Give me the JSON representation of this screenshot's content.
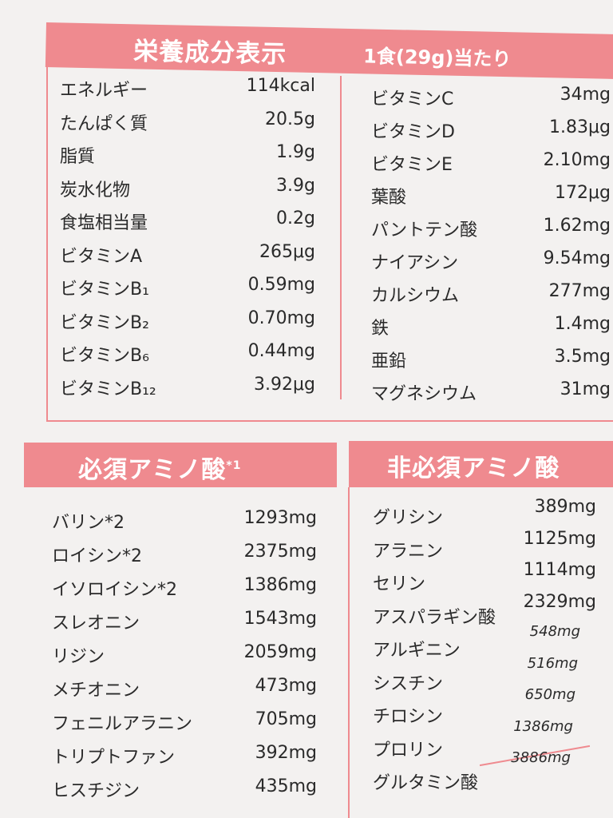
{
  "nutrition": {
    "title": "栄養成分表示",
    "serving": "1食(29g)当たり",
    "left": [
      {
        "label": "エネルギー",
        "value": "114kcal"
      },
      {
        "label": "たんぱく質",
        "value": "20.5g"
      },
      {
        "label": "脂質",
        "value": "1.9g"
      },
      {
        "label": "炭水化物",
        "value": "3.9g"
      },
      {
        "label": "食塩相当量",
        "value": "0.2g"
      },
      {
        "label": "ビタミンA",
        "value": "265μg"
      },
      {
        "label": "ビタミンB₁",
        "value": "0.59mg"
      },
      {
        "label": "ビタミンB₂",
        "value": "0.70mg"
      },
      {
        "label": "ビタミンB₆",
        "value": "0.44mg"
      },
      {
        "label": "ビタミンB₁₂",
        "value": "3.92μg"
      }
    ],
    "right": [
      {
        "label": "ビタミンC",
        "value": "34mg"
      },
      {
        "label": "ビタミンD",
        "value": "1.83μg"
      },
      {
        "label": "ビタミンE",
        "value": "2.10mg"
      },
      {
        "label": "葉酸",
        "value": "172μg"
      },
      {
        "label": "パントテン酸",
        "value": "1.62mg"
      },
      {
        "label": "ナイアシン",
        "value": "9.54mg"
      },
      {
        "label": "カルシウム",
        "value": "277mg"
      },
      {
        "label": "鉄",
        "value": "1.4mg"
      },
      {
        "label": "亜鉛",
        "value": "3.5mg"
      },
      {
        "label": "マグネシウム",
        "value": "31mg"
      }
    ]
  },
  "essential": {
    "title": "必須アミノ酸",
    "footnote_mark": "*1",
    "items": [
      {
        "label": "バリン*2",
        "value": "1293mg"
      },
      {
        "label": "ロイシン*2",
        "value": "2375mg"
      },
      {
        "label": "イソロイシン*2",
        "value": "1386mg"
      },
      {
        "label": "スレオニン",
        "value": "1543mg"
      },
      {
        "label": "リジン",
        "value": "2059mg"
      },
      {
        "label": "メチオニン",
        "value": "473mg"
      },
      {
        "label": "フェニルアラニン",
        "value": "705mg"
      },
      {
        "label": "トリプトファン",
        "value": "392mg"
      },
      {
        "label": "ヒスチジン",
        "value": "435mg"
      }
    ]
  },
  "non_essential": {
    "title": "非必須アミノ酸",
    "items": [
      {
        "label": "グリシン",
        "value": "389mg"
      },
      {
        "label": "アラニン",
        "value": "1125mg"
      },
      {
        "label": "セリン",
        "value": "1114mg"
      },
      {
        "label": "アスパラギン酸",
        "value": "2329mg"
      },
      {
        "label": "アルギニン",
        "value": "548mg"
      },
      {
        "label": "シスチン",
        "value": "516mg"
      },
      {
        "label": "チロシン",
        "value": "650mg"
      },
      {
        "label": "プロリン",
        "value": "1386mg"
      },
      {
        "label": "グルタミン酸",
        "value": "3886mg"
      }
    ]
  },
  "colors": {
    "accent": "#ef8a8f",
    "text": "#2a2a2a",
    "background": "#f3f1f0"
  }
}
